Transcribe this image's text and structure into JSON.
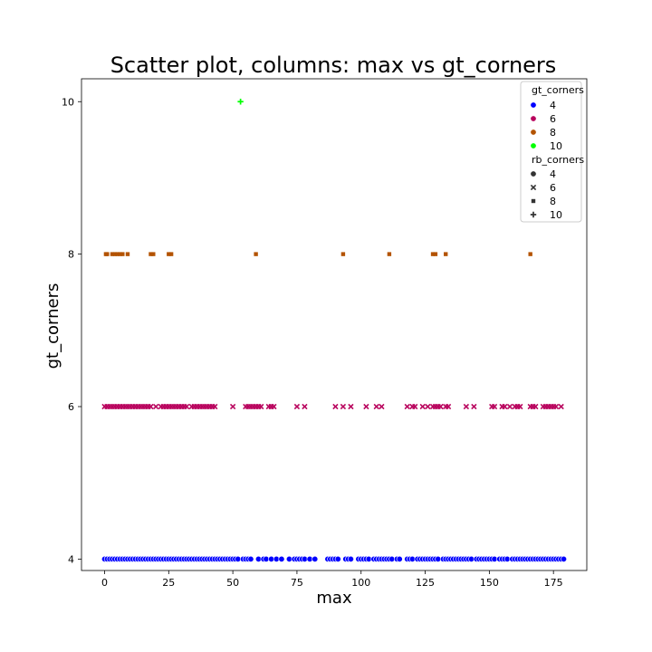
{
  "chart_data": {
    "type": "scatter",
    "title": "Scatter plot, columns: max vs gt_corners",
    "xlabel": "max",
    "ylabel": "gt_corners",
    "xlim": [
      -9,
      188
    ],
    "ylim": [
      3.85,
      10.3
    ],
    "xticks": [
      "0",
      "25",
      "50",
      "75",
      "100",
      "125",
      "150",
      "175"
    ],
    "xtick_values": [
      0,
      25,
      50,
      75,
      100,
      125,
      150,
      175
    ],
    "yticks": [
      "4",
      "6",
      "8",
      "10"
    ],
    "ytick_values": [
      4,
      6,
      8,
      10
    ],
    "grid": false,
    "legend_placement": "top-right",
    "legend": {
      "hue_title": "gt_corners",
      "hue_entries": [
        {
          "label": "4",
          "color": "#0000ff"
        },
        {
          "label": "6",
          "color": "#b8005c"
        },
        {
          "label": "8",
          "color": "#b35300"
        },
        {
          "label": "10",
          "color": "#00ff00"
        }
      ],
      "style_title": "rb_corners",
      "style_entries": [
        {
          "label": "4",
          "marker": "circle"
        },
        {
          "label": "6",
          "marker": "x"
        },
        {
          "label": "8",
          "marker": "square"
        },
        {
          "label": "10",
          "marker": "plus"
        }
      ]
    },
    "series": [
      {
        "gt": 4,
        "marker": "circle",
        "color": "#0000ff",
        "x": [
          0,
          1,
          2,
          3,
          4,
          5,
          6,
          7,
          8,
          9,
          10,
          11,
          12,
          13,
          14,
          15,
          16,
          17,
          18,
          19,
          20,
          21,
          22,
          23,
          24,
          25,
          26,
          27,
          28,
          29,
          30,
          31,
          32,
          33,
          34,
          35,
          36,
          37,
          38,
          39,
          40,
          41,
          42,
          43,
          44,
          45,
          46,
          47,
          48,
          49,
          50,
          51,
          52,
          54,
          55,
          56,
          57,
          60,
          62,
          63,
          65,
          67,
          69,
          72,
          74,
          75,
          76,
          77,
          78,
          80,
          82,
          87,
          88,
          89,
          90,
          91,
          94,
          95,
          96,
          99,
          100,
          101,
          102,
          103,
          105,
          106,
          107,
          108,
          109,
          110,
          111,
          112,
          114,
          115,
          118,
          119,
          120,
          122,
          123,
          124,
          125,
          126,
          127,
          128,
          129,
          130,
          132,
          133,
          134,
          135,
          136,
          137,
          138,
          139,
          140,
          141,
          142,
          143,
          145,
          146,
          147,
          148,
          149,
          150,
          151,
          152,
          154,
          155,
          156,
          157,
          159,
          160,
          161,
          162,
          163,
          164,
          165,
          166,
          167,
          168,
          169,
          170,
          171,
          172,
          173,
          174,
          175,
          176,
          177,
          178,
          179
        ]
      },
      {
        "gt": 6,
        "marker": "x",
        "color": "#b8005c",
        "x": [
          0,
          1,
          2,
          3,
          4,
          5,
          6,
          7,
          8,
          9,
          10,
          11,
          12,
          13,
          14,
          15,
          16,
          17,
          18,
          20,
          22,
          23,
          24,
          25,
          26,
          27,
          28,
          29,
          30,
          31,
          32,
          34,
          35,
          36,
          37,
          38,
          39,
          40,
          41,
          42,
          43,
          50,
          55,
          56,
          57,
          58,
          59,
          60,
          61,
          64,
          65,
          66,
          75,
          78,
          90,
          93,
          96,
          102,
          106,
          108,
          118,
          120,
          121,
          124,
          126,
          128,
          129,
          130,
          131,
          133,
          134,
          141,
          144,
          151,
          152,
          155,
          156,
          158,
          160,
          161,
          162,
          166,
          167,
          168,
          171,
          172,
          173,
          174,
          175,
          176,
          178
        ]
      },
      {
        "gt": 8,
        "marker": "square",
        "color": "#b35300",
        "x": [
          0.5,
          1,
          3,
          4,
          5,
          6,
          7,
          9,
          18,
          19,
          25,
          26,
          59,
          93,
          111,
          128,
          129,
          133,
          166
        ]
      },
      {
        "gt": 10,
        "marker": "plus",
        "color": "#00ff00",
        "x": [
          53
        ]
      }
    ]
  }
}
